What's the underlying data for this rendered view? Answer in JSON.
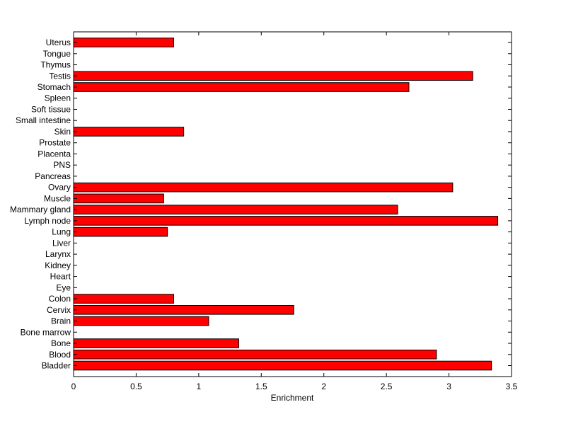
{
  "chart_data": {
    "type": "bar",
    "orientation": "horizontal",
    "xlabel": "Enrichment",
    "ylabel": "",
    "title": "",
    "xlim": [
      0,
      3.5
    ],
    "xticks": [
      "0",
      "0.5",
      "1",
      "1.5",
      "2",
      "2.5",
      "3",
      "3.5"
    ],
    "grid": false,
    "bar_color": "#ff0000",
    "bar_edge_color": "#000000",
    "categories": [
      "Bladder",
      "Blood",
      "Bone",
      "Bone marrow",
      "Brain",
      "Cervix",
      "Colon",
      "Eye",
      "Heart",
      "Kidney",
      "Larynx",
      "Liver",
      "Lung",
      "Lymph node",
      "Mammary gland",
      "Muscle",
      "Ovary",
      "Pancreas",
      "PNS",
      "Placenta",
      "Prostate",
      "Skin",
      "Small intestine",
      "Soft tissue",
      "Spleen",
      "Stomach",
      "Testis",
      "Thymus",
      "Tongue",
      "Uterus"
    ],
    "values": [
      3.34,
      2.9,
      1.32,
      0,
      1.08,
      1.76,
      0.8,
      0,
      0,
      0,
      0,
      0,
      0.75,
      3.39,
      2.59,
      0.72,
      3.03,
      0,
      0,
      0,
      0,
      0.88,
      0,
      0,
      0,
      2.68,
      3.19,
      0,
      0,
      0.8
    ]
  }
}
